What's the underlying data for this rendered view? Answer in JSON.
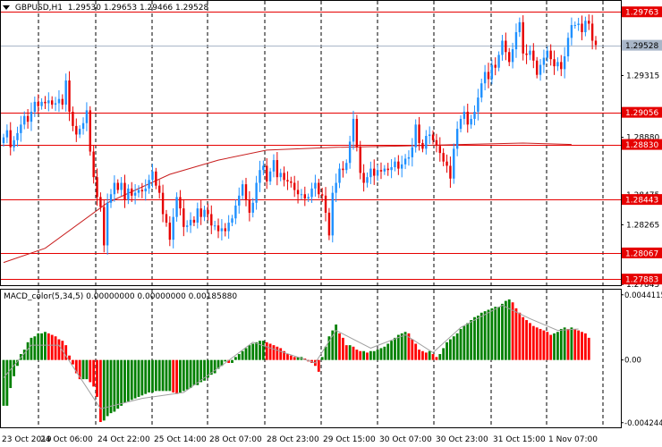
{
  "header": {
    "symbol": "GBPUSD,H1",
    "ohlc": "1.29530 1.29653 1.29466 1.29528"
  },
  "macd_header": "MACD_color(5,34,5) 0.00000000 0.00000000 0.00185880",
  "price_axis": {
    "ticks": [
      "1.29750",
      "1.29315",
      "1.28880",
      "1.28475",
      "1.28265",
      "1.27845"
    ],
    "tick_values": [
      1.2975,
      1.29315,
      1.2888,
      1.28475,
      1.28265,
      1.27845
    ],
    "levels": [
      {
        "label": "1.29763",
        "value": 1.29763,
        "color": "#e60000",
        "text_color": "#ffffff"
      },
      {
        "label": "1.29528",
        "value": 1.29528,
        "color": "#a9b6c8",
        "text_color": "#000000",
        "current": true
      },
      {
        "label": "1.29056",
        "value": 1.29056,
        "color": "#e60000",
        "text_color": "#ffffff"
      },
      {
        "label": "1.28830",
        "value": 1.2883,
        "color": "#e60000",
        "text_color": "#ffffff"
      },
      {
        "label": "1.28443",
        "value": 1.28443,
        "color": "#e60000",
        "text_color": "#ffffff"
      },
      {
        "label": "1.28067",
        "value": 1.28067,
        "color": "#e60000",
        "text_color": "#ffffff"
      },
      {
        "label": "1.27883",
        "value": 1.27883,
        "color": "#e60000",
        "text_color": "#ffffff"
      }
    ]
  },
  "macd_axis": {
    "ticks": [
      "0.0044115",
      "0.00",
      "-0.0042444"
    ],
    "tick_values": [
      0.0044115,
      0,
      -0.0042444
    ]
  },
  "time_axis": [
    "23 Oct 2019",
    "24 Oct 06:00",
    "24 Oct 22:00",
    "25 Oct 14:00",
    "28 Oct 07:00",
    "28 Oct 23:00",
    "29 Oct 15:00",
    "30 Oct 07:00",
    "30 Oct 23:00",
    "31 Oct 15:00",
    "1 Nov 07:00"
  ],
  "colors": {
    "bull": "#1e90ff",
    "bear": "#e60000",
    "ma": "#c81e1e",
    "macd_up": "#008000",
    "macd_down": "#ff0000",
    "signal": "#a0a0a0",
    "grid": "#000000"
  },
  "chart_data": [
    {
      "type": "candlestick",
      "title": "GBPUSD,H1",
      "ylim": [
        1.2784,
        1.2984
      ],
      "close": [
        1.2888,
        1.2893,
        1.2881,
        1.2886,
        1.2891,
        1.2897,
        1.2903,
        1.2899,
        1.2906,
        1.2913,
        1.291,
        1.2913,
        1.2912,
        1.2914,
        1.2911,
        1.2912,
        1.2915,
        1.2911,
        1.2928,
        1.2906,
        1.2896,
        1.289,
        1.2894,
        1.2898,
        1.2907,
        1.2878,
        1.286,
        1.2846,
        1.2839,
        1.2812,
        1.2842,
        1.2848,
        1.2856,
        1.2851,
        1.2856,
        1.2844,
        1.2852,
        1.2847,
        1.2849,
        1.2851,
        1.285,
        1.2852,
        1.2858,
        1.2864,
        1.2854,
        1.2849,
        1.2834,
        1.2828,
        1.2816,
        1.2832,
        1.2846,
        1.2838,
        1.2825,
        1.2826,
        1.283,
        1.2828,
        1.2838,
        1.2832,
        1.2837,
        1.2834,
        1.2826,
        1.2826,
        1.2822,
        1.2824,
        1.2822,
        1.2828,
        1.2831,
        1.284,
        1.2847,
        1.2855,
        1.2844,
        1.2835,
        1.2842,
        1.2856,
        1.2865,
        1.2868,
        1.2857,
        1.2864,
        1.2872,
        1.286,
        1.2863,
        1.2858,
        1.2857,
        1.2856,
        1.2851,
        1.2848,
        1.2848,
        1.2845,
        1.2846,
        1.2852,
        1.2856,
        1.2848,
        1.2847,
        1.2835,
        1.2819,
        1.2849,
        1.2856,
        1.2866,
        1.2865,
        1.287,
        1.2885,
        1.2901,
        1.2881,
        1.2863,
        1.2856,
        1.286,
        1.2866,
        1.2861,
        1.2865,
        1.2864,
        1.2866,
        1.2865,
        1.2867,
        1.2871,
        1.2866,
        1.2869,
        1.2873,
        1.2874,
        1.2881,
        1.2897,
        1.2884,
        1.288,
        1.2889,
        1.289,
        1.2886,
        1.2882,
        1.2877,
        1.2871,
        1.2868,
        1.2859,
        1.288,
        1.2894,
        1.2901,
        1.2906,
        1.2897,
        1.2901,
        1.2906,
        1.2916,
        1.2926,
        1.2934,
        1.2929,
        1.2939,
        1.2937,
        1.2946,
        1.2956,
        1.2948,
        1.2941,
        1.295,
        1.2962,
        1.2969,
        1.2947,
        1.2946,
        1.2949,
        1.2942,
        1.2932,
        1.2939,
        1.2944,
        1.2949,
        1.2943,
        1.2938,
        1.2941,
        1.2936,
        1.2945,
        1.2958,
        1.2967,
        1.2967,
        1.2968,
        1.2962,
        1.297,
        1.2968,
        1.2956,
        1.2953
      ],
      "ma_series": [
        {
          "x_index": 0,
          "y": 1.28
        },
        {
          "x_index": 12,
          "y": 1.281
        },
        {
          "x_index": 30,
          "y": 1.2842
        },
        {
          "x_index": 48,
          "y": 1.2862
        },
        {
          "x_index": 62,
          "y": 1.2872
        },
        {
          "x_index": 76,
          "y": 1.2879
        },
        {
          "x_index": 96,
          "y": 1.2881
        },
        {
          "x_index": 116,
          "y": 1.2882
        },
        {
          "x_index": 132,
          "y": 1.2883
        },
        {
          "x_index": 150,
          "y": 1.2884
        },
        {
          "x_index": 164,
          "y": 1.2883
        }
      ]
    },
    {
      "type": "bar",
      "title": "MACD_color(5,34,5)",
      "ylim": [
        -0.0045,
        0.0047
      ],
      "values": [
        -0.0031,
        -0.0031,
        -0.0019,
        -0.0011,
        -0.0004,
        0.0004,
        0.0007,
        0.0012,
        0.0015,
        0.0016,
        0.0018,
        0.0018,
        0.0019,
        0.0018,
        0.0017,
        0.0016,
        0.0014,
        0.0013,
        0.001,
        0.0003,
        -0.0003,
        -0.0009,
        -0.0013,
        -0.0013,
        -0.0013,
        -0.0015,
        -0.0018,
        -0.0025,
        -0.0042,
        -0.0041,
        -0.0038,
        -0.0036,
        -0.0035,
        -0.0033,
        -0.0031,
        -0.0029,
        -0.0028,
        -0.0027,
        -0.0026,
        -0.0025,
        -0.0024,
        -0.0023,
        -0.0022,
        -0.0022,
        -0.0021,
        -0.0021,
        -0.0021,
        -0.0021,
        -0.0021,
        -0.0022,
        -0.0023,
        -0.0022,
        -0.0021,
        -0.002,
        -0.0019,
        -0.0017,
        -0.0017,
        -0.0015,
        -0.0014,
        -0.0012,
        -0.001,
        -0.0009,
        -0.0006,
        -0.0004,
        -0.0001,
        -0.0002,
        -0.0002,
        0.0002,
        0.0004,
        0.0006,
        0.0008,
        0.001,
        0.0011,
        0.0012,
        0.0013,
        0.0013,
        0.0012,
        0.0011,
        0.001,
        0.0009,
        0.0008,
        0.0006,
        0.0004,
        0.0003,
        0.0002,
        0.0002,
        0.0002,
        0.0001,
        -0.0001,
        -0.0002,
        -0.0004,
        -0.0008,
        0.0002,
        0.0009,
        0.0016,
        0.002,
        0.0024,
        0.0018,
        0.0015,
        0.001,
        0.001,
        0.0009,
        0.0007,
        0.0006,
        0.0006,
        0.0005,
        0.0006,
        0.0006,
        0.0007,
        0.0008,
        0.0009,
        0.0011,
        0.0013,
        0.0015,
        0.0017,
        0.0018,
        0.0019,
        0.0018,
        0.0014,
        0.0011,
        0.0007,
        0.0006,
        0.0005,
        0.0006,
        0.0004,
        0.0002,
        0.0004,
        0.0008,
        0.0012,
        0.0014,
        0.0016,
        0.0018,
        0.0021,
        0.0023,
        0.0025,
        0.0027,
        0.0029,
        0.003,
        0.0032,
        0.0033,
        0.0034,
        0.0035,
        0.0036,
        0.0036,
        0.0038,
        0.004,
        0.0041,
        0.0039,
        0.0035,
        0.0032,
        0.0029,
        0.0027,
        0.0025,
        0.0023,
        0.0022,
        0.0021,
        0.002,
        0.0019,
        0.0017,
        0.0018,
        0.0019,
        0.0021,
        0.0022,
        0.0021,
        0.0022,
        0.0021,
        0.002,
        0.0019,
        0.0018,
        0.0015
      ],
      "signal": [
        {
          "x_index": 0,
          "y": -0.0012
        },
        {
          "x_index": 8,
          "y": 0.001
        },
        {
          "x_index": 16,
          "y": 0.001
        },
        {
          "x_index": 28,
          "y": -0.0033
        },
        {
          "x_index": 40,
          "y": -0.0026
        },
        {
          "x_index": 52,
          "y": -0.0022
        },
        {
          "x_index": 64,
          "y": -0.0002
        },
        {
          "x_index": 72,
          "y": 0.0012
        },
        {
          "x_index": 90,
          "y": -0.0002
        },
        {
          "x_index": 96,
          "y": 0.002
        },
        {
          "x_index": 106,
          "y": 0.0008
        },
        {
          "x_index": 116,
          "y": 0.0017
        },
        {
          "x_index": 124,
          "y": 0.0005
        },
        {
          "x_index": 132,
          "y": 0.0022
        },
        {
          "x_index": 144,
          "y": 0.0037
        },
        {
          "x_index": 152,
          "y": 0.0028
        },
        {
          "x_index": 160,
          "y": 0.002
        },
        {
          "x_index": 166,
          "y": 0.0021
        }
      ]
    }
  ]
}
